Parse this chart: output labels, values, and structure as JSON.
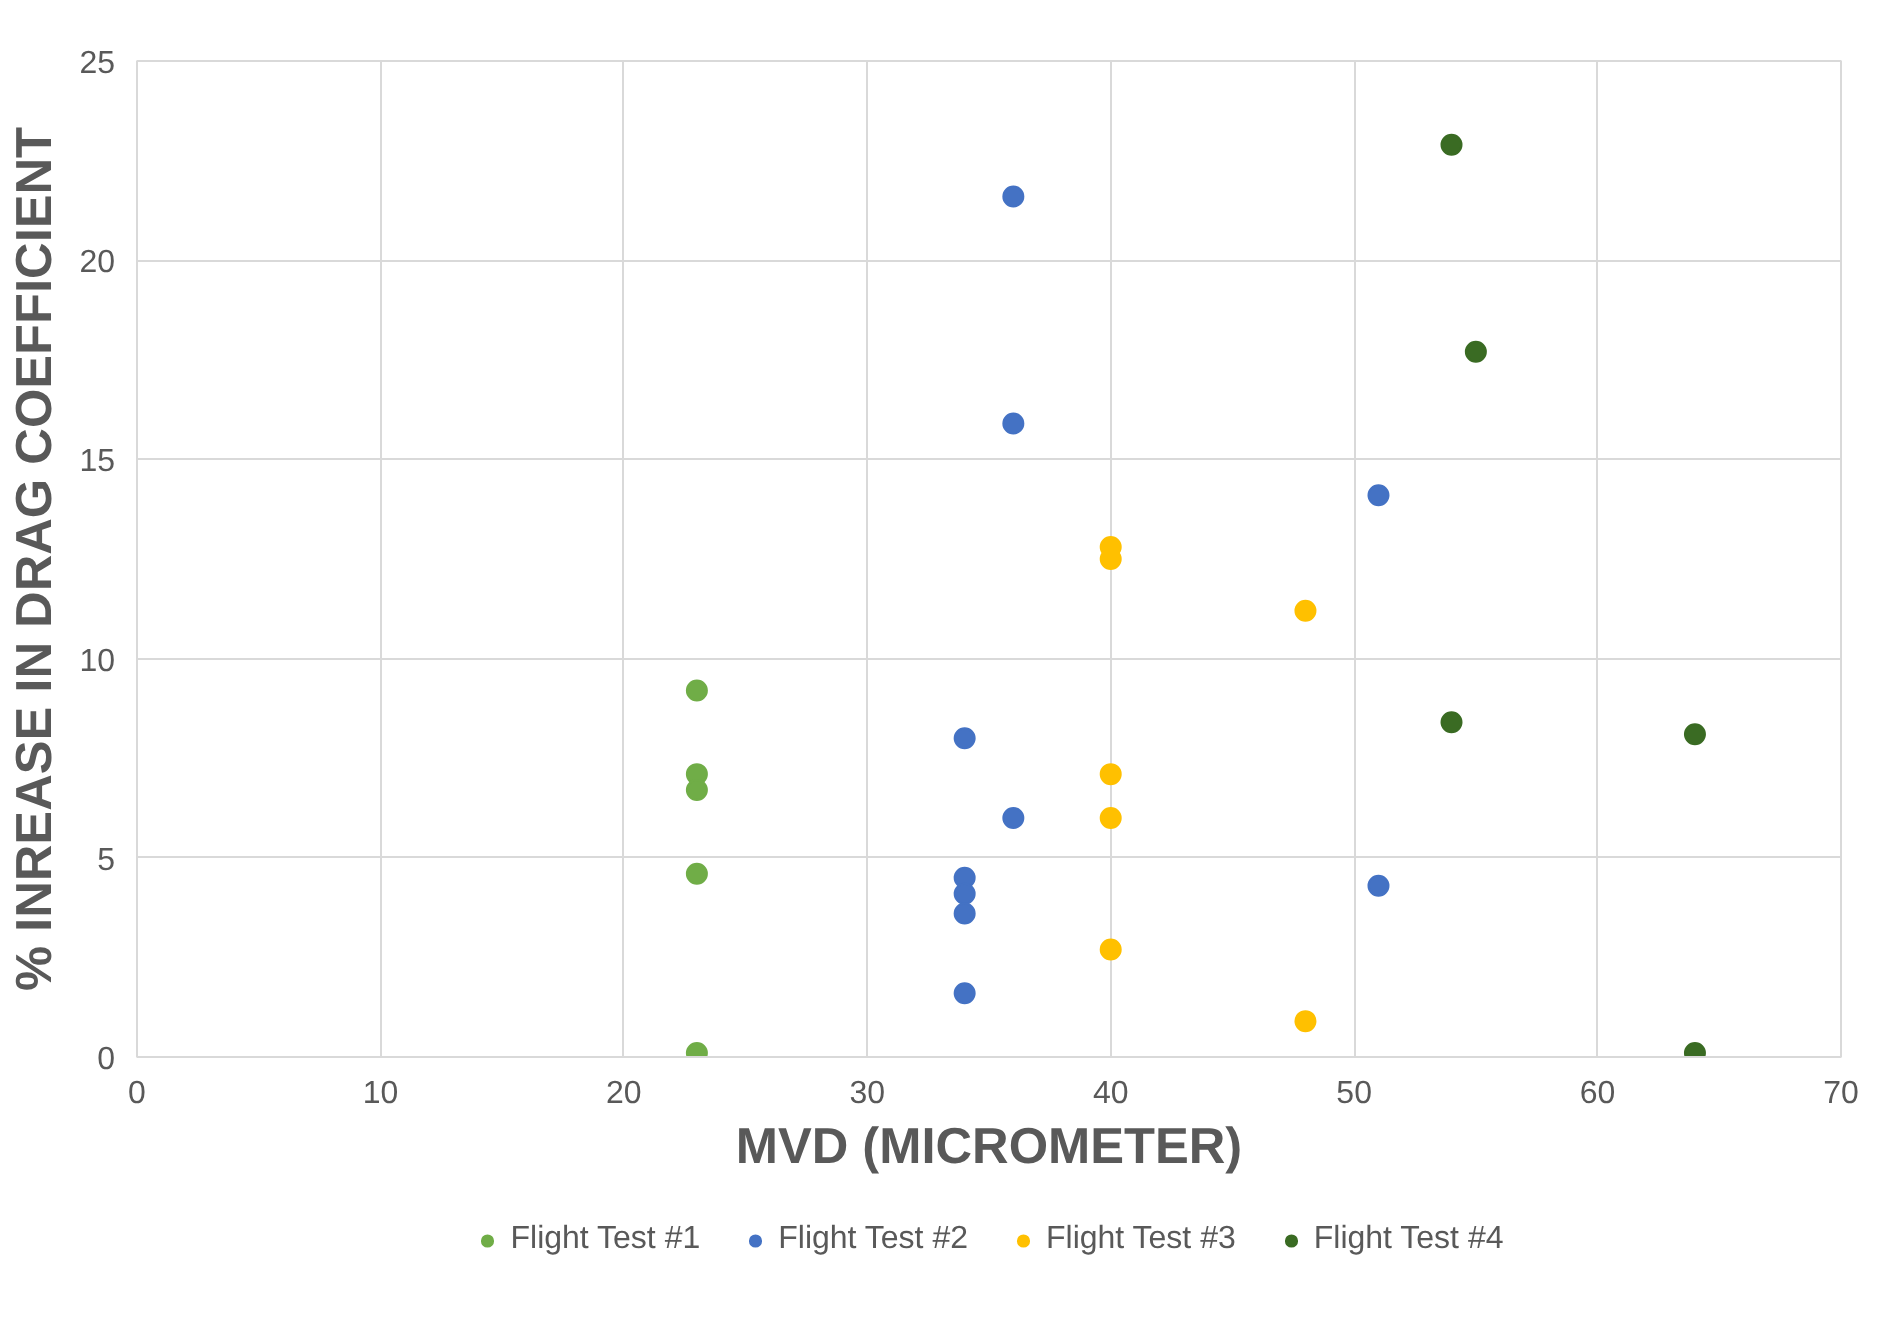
{
  "chart_data": {
    "type": "scatter",
    "xlabel": "MVD (MICROMETER)",
    "ylabel": "% INREASE IN DRAG COEFFICIENT",
    "xlim": [
      0,
      70
    ],
    "xticks": [
      0,
      10,
      20,
      30,
      40,
      50,
      60,
      70
    ],
    "ylim": [
      0,
      25
    ],
    "yticks": [
      0,
      5,
      10,
      15,
      20,
      25
    ],
    "grid": true,
    "legend": "bottom",
    "marker": "circle",
    "series": [
      {
        "name": "Flight Test #1",
        "color": "#70ad47",
        "x": [
          23,
          23,
          23,
          23,
          23
        ],
        "values": [
          9.2,
          7.1,
          6.7,
          4.6,
          0.1
        ]
      },
      {
        "name": "Flight Test #2",
        "color": "#4472c4",
        "x": [
          36,
          36,
          36,
          34,
          34,
          34,
          34,
          34,
          51,
          51
        ],
        "values": [
          21.6,
          15.9,
          6.0,
          8.0,
          4.5,
          4.1,
          3.6,
          1.6,
          14.1,
          4.3
        ]
      },
      {
        "name": "Flight Test #3",
        "color": "#ffc000",
        "x": [
          40,
          40,
          40,
          40,
          40,
          48,
          48
        ],
        "values": [
          12.8,
          12.5,
          7.1,
          6.0,
          2.7,
          11.2,
          0.9
        ]
      },
      {
        "name": "Flight Test #4",
        "color": "#3a6b23",
        "x": [
          54,
          54,
          55,
          64,
          64
        ],
        "values": [
          22.9,
          8.4,
          17.7,
          8.1,
          0.1
        ]
      }
    ]
  }
}
